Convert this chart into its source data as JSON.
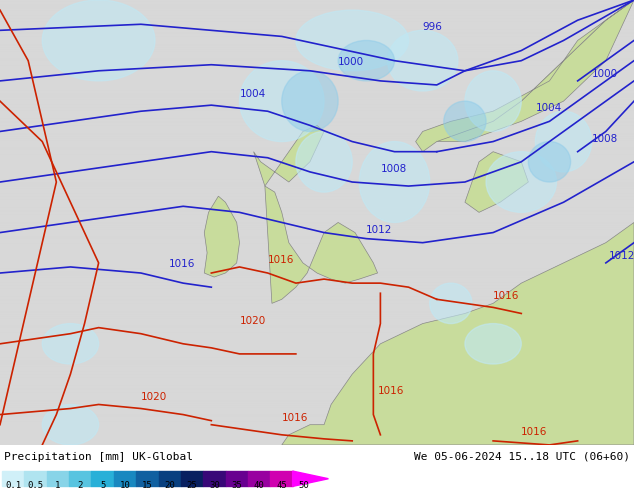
{
  "title_left": "Precipitation [mm] UK-Global",
  "title_right": "We 05-06-2024 15..18 UTC (06+60)",
  "colorbar_values": [
    0.1,
    0.5,
    1,
    2,
    5,
    10,
    15,
    20,
    25,
    30,
    35,
    40,
    45,
    50
  ],
  "colorbar_colors": [
    "#d0f0f8",
    "#b0e4f0",
    "#88d4e8",
    "#58c4e0",
    "#28b0d8",
    "#1888c0",
    "#1060a0",
    "#084080",
    "#082060",
    "#380878",
    "#680090",
    "#9800a0",
    "#d000b0",
    "#ff00ff"
  ],
  "ocean_color": "#d8d8d8",
  "land_green_color": "#c8dc9c",
  "land_gray_color": "#b0b0b0",
  "precip_light": "#a8e0f0",
  "precip_medium": "#78c8e8",
  "precip_strong": "#48a8d0",
  "blue_line_color": "#2222cc",
  "red_line_color": "#cc2200",
  "figure_width": 6.34,
  "figure_height": 4.9,
  "dpi": 100,
  "map_extent": [
    -25,
    20,
    43,
    65
  ],
  "bar_height": 0.092
}
